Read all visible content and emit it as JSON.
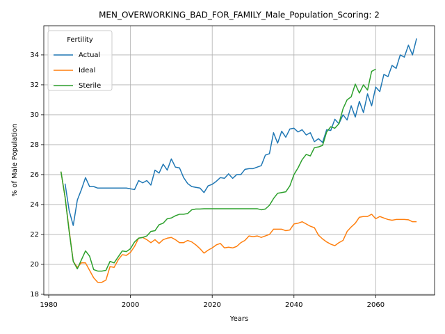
{
  "chart_data": {
    "type": "line",
    "title": "MEN_OVERWORKING_BAD_FOR_FAMILY_Male_Population_Scoring: 2",
    "xlabel": "Years",
    "ylabel": "% of Male Population",
    "legend_title": "Fertility",
    "legend": "upper left",
    "grid": true,
    "xlim": [
      1978.8,
      2074.4
    ],
    "ylim": [
      17.95,
      35.95
    ],
    "xticks": [
      1980,
      2000,
      2020,
      2040,
      2060
    ],
    "yticks": [
      18,
      20,
      22,
      24,
      26,
      28,
      30,
      32,
      34
    ],
    "x": [
      1983,
      1984,
      1985,
      1986,
      1987,
      1988,
      1989,
      1990,
      1991,
      1992,
      1993,
      1994,
      1995,
      1996,
      1997,
      1998,
      1999,
      2000,
      2001,
      2002,
      2003,
      2004,
      2005,
      2006,
      2007,
      2008,
      2009,
      2010,
      2011,
      2012,
      2013,
      2014,
      2015,
      2016,
      2017,
      2018,
      2019,
      2020,
      2021,
      2022,
      2023,
      2024,
      2025,
      2026,
      2027,
      2028,
      2029,
      2030,
      2031,
      2032,
      2033,
      2034,
      2035,
      2036,
      2037,
      2038,
      2039,
      2040,
      2041,
      2042,
      2043,
      2044,
      2045,
      2046,
      2047,
      2048,
      2049,
      2050,
      2051,
      2052,
      2053,
      2054,
      2055,
      2056,
      2057,
      2058,
      2059,
      2060,
      2061,
      2062,
      2063,
      2064,
      2065,
      2066,
      2067,
      2068,
      2069,
      2070
    ],
    "series": [
      {
        "name": "Actual",
        "color": "#1f77b4",
        "values": [
          null,
          25.4,
          23.6,
          22.6,
          24.3,
          25.0,
          25.8,
          25.2,
          25.2,
          25.1,
          25.1,
          25.1,
          25.1,
          25.1,
          25.1,
          25.1,
          25.1,
          25.05,
          25.0,
          25.6,
          25.45,
          25.6,
          25.3,
          26.3,
          26.1,
          26.7,
          26.3,
          27.05,
          26.5,
          26.45,
          25.8,
          25.4,
          25.2,
          25.15,
          25.1,
          24.8,
          25.25,
          25.35,
          25.55,
          25.8,
          25.75,
          26.05,
          25.75,
          26.0,
          26.0,
          26.35,
          26.4,
          26.4,
          26.5,
          26.6,
          27.3,
          27.4,
          28.8,
          28.1,
          28.9,
          28.5,
          29.05,
          29.1,
          28.85,
          29.0,
          28.65,
          28.8,
          28.2,
          28.4,
          28.15,
          29.0,
          28.95,
          29.7,
          29.4,
          30.0,
          29.65,
          30.6,
          29.85,
          30.9,
          30.15,
          31.4,
          30.6,
          31.85,
          31.55,
          32.7,
          32.55,
          33.3,
          33.1,
          34.0,
          33.85,
          34.65,
          34.0,
          35.1
        ]
      },
      {
        "name": "Ideal",
        "color": "#ff7f0e",
        "values": [
          26.2,
          24.5,
          22.3,
          20.2,
          19.8,
          20.1,
          20.1,
          19.6,
          19.1,
          18.8,
          18.8,
          18.95,
          19.85,
          19.8,
          20.3,
          20.65,
          20.6,
          20.8,
          21.2,
          21.75,
          21.8,
          21.65,
          21.45,
          21.65,
          21.4,
          21.65,
          21.75,
          21.8,
          21.65,
          21.45,
          21.45,
          21.6,
          21.5,
          21.3,
          21.05,
          20.75,
          20.95,
          21.1,
          21.3,
          21.4,
          21.1,
          21.15,
          21.1,
          21.2,
          21.45,
          21.6,
          21.9,
          21.85,
          21.9,
          21.8,
          21.9,
          22.0,
          22.35,
          22.35,
          22.35,
          22.25,
          22.3,
          22.7,
          22.75,
          22.85,
          22.7,
          22.55,
          22.45,
          21.95,
          21.7,
          21.5,
          21.35,
          21.25,
          21.45,
          21.6,
          22.2,
          22.5,
          22.75,
          23.15,
          23.2,
          23.2,
          23.35,
          23.05,
          23.2,
          23.1,
          23.0,
          22.95,
          23.0,
          23.0,
          23.0,
          22.98,
          22.85,
          22.85
        ]
      },
      {
        "name": "Sterile",
        "color": "#2ca02c",
        "values": [
          26.2,
          24.5,
          22.2,
          20.2,
          19.7,
          20.3,
          20.9,
          20.55,
          19.65,
          19.55,
          19.55,
          19.6,
          20.2,
          20.1,
          20.5,
          20.9,
          20.85,
          21.05,
          21.5,
          21.75,
          21.8,
          21.9,
          22.2,
          22.25,
          22.65,
          22.75,
          23.05,
          23.1,
          23.25,
          23.35,
          23.35,
          23.4,
          23.65,
          23.7,
          23.7,
          23.72,
          23.72,
          23.72,
          23.72,
          23.72,
          23.72,
          23.72,
          23.72,
          23.72,
          23.72,
          23.72,
          23.72,
          23.72,
          23.72,
          23.65,
          23.7,
          23.95,
          24.4,
          24.75,
          24.8,
          24.85,
          25.25,
          26.0,
          26.45,
          27.0,
          27.35,
          27.25,
          27.8,
          27.85,
          27.95,
          28.85,
          29.2,
          29.1,
          29.4,
          30.4,
          31.0,
          31.2,
          32.05,
          31.45,
          32.0,
          31.65,
          32.9,
          33.05,
          null,
          null,
          null,
          null,
          null,
          null,
          null,
          null,
          null,
          null
        ]
      }
    ]
  }
}
